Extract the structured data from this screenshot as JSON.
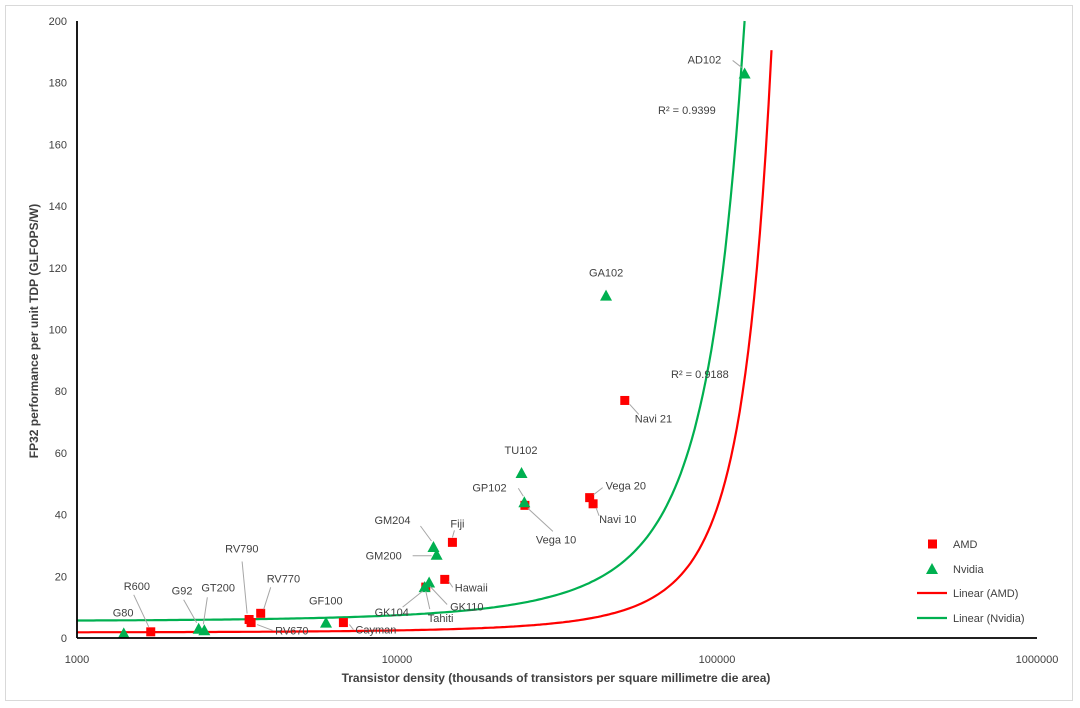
{
  "chart_data": {
    "type": "scatter",
    "title": "",
    "xlabel": "Transistor density (thousands of transistors per square millimetre die area)",
    "ylabel": "FP32 performance per unit TDP (GLFOPS/W)",
    "xscale": "log",
    "xlim": [
      1000,
      1000000
    ],
    "ylim": [
      0,
      200
    ],
    "x_ticks": [
      "1000",
      "10000",
      "100000",
      "1000000"
    ],
    "y_ticks": [
      "0",
      "20",
      "40",
      "60",
      "80",
      "100",
      "120",
      "140",
      "160",
      "180",
      "200"
    ],
    "grid": false,
    "legend_position": "right",
    "series": [
      {
        "name": "AMD",
        "marker": "square",
        "color": "#ff0000",
        "points": [
          {
            "label": "R600",
            "x": 1700,
            "y": 2
          },
          {
            "label": "RV670",
            "x": 3500,
            "y": 5
          },
          {
            "label": "RV790",
            "x": 3450,
            "y": 6
          },
          {
            "label": "RV770",
            "x": 3750,
            "y": 8
          },
          {
            "label": "Cayman",
            "x": 6800,
            "y": 5
          },
          {
            "label": "Tahiti",
            "x": 12300,
            "y": 16.5
          },
          {
            "label": "Hawaii",
            "x": 14100,
            "y": 19
          },
          {
            "label": "Fiji",
            "x": 14900,
            "y": 31
          },
          {
            "label": "Vega 10",
            "x": 25100,
            "y": 43
          },
          {
            "label": "Vega 20",
            "x": 40000,
            "y": 45.5
          },
          {
            "label": "Navi 10",
            "x": 41000,
            "y": 43.5
          },
          {
            "label": "Navi 21",
            "x": 51500,
            "y": 77
          }
        ]
      },
      {
        "name": "Nvidia",
        "marker": "triangle",
        "color": "#00b050",
        "points": [
          {
            "label": "G80",
            "x": 1400,
            "y": 1.5
          },
          {
            "label": "G92",
            "x": 2400,
            "y": 3
          },
          {
            "label": "GT200",
            "x": 2500,
            "y": 2.5
          },
          {
            "label": "GF100",
            "x": 6000,
            "y": 5
          },
          {
            "label": "GK104",
            "x": 12200,
            "y": 16.5
          },
          {
            "label": "GK110",
            "x": 12600,
            "y": 18
          },
          {
            "label": "GM200",
            "x": 13300,
            "y": 27
          },
          {
            "label": "GM204",
            "x": 13000,
            "y": 29.5
          },
          {
            "label": "GP102",
            "x": 25000,
            "y": 44
          },
          {
            "label": "TU102",
            "x": 24500,
            "y": 53.5
          },
          {
            "label": "GA102",
            "x": 45000,
            "y": 111
          },
          {
            "label": "AD102",
            "x": 122000,
            "y": 183
          }
        ]
      }
    ],
    "trendlines": [
      {
        "name": "Linear (AMD)",
        "color": "#ff0000",
        "a": 1.8,
        "b": 3.15e-05,
        "x_range": [
          1000,
          148000
        ],
        "r2": "R² = 0.9188"
      },
      {
        "name": "Linear (Nvidia)",
        "color": "#00b050",
        "a": 5.5,
        "b": 2.95e-05,
        "x_range": [
          1000,
          122000
        ],
        "r2": "R² = 0.9399"
      }
    ]
  }
}
